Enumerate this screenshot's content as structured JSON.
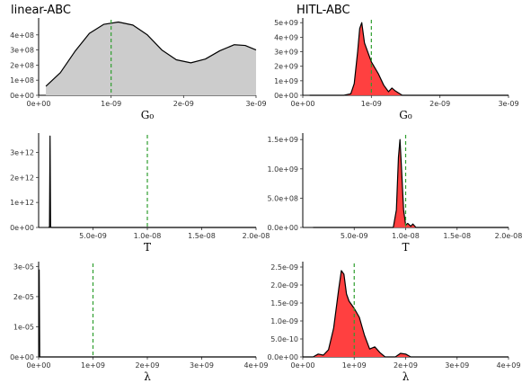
{
  "column_titles": [
    "linear-ABC",
    "HITL-ABC"
  ],
  "colors": {
    "linear_fill": "#cccccc",
    "hitl_fill": "#ff4040",
    "marker": "#2e9e2e",
    "curve": "#000000"
  },
  "chart_data": [
    {
      "type": "area",
      "column": "linear-ABC",
      "xlabel": "G₀",
      "xlim": [
        0,
        3e-09
      ],
      "ylim": [
        0,
        500000000.0
      ],
      "xticks": [
        0,
        1e-09,
        2e-09,
        3e-09
      ],
      "xtick_labels": [
        "0e+00",
        "1e-09",
        "2e-09",
        "3e-09"
      ],
      "yticks": [
        0,
        100000000.0,
        200000000.0,
        300000000.0,
        400000000.0
      ],
      "ytick_labels": [
        "0e+00",
        "1e+08",
        "2e+08",
        "3e+08",
        "4e+08"
      ],
      "filled": true,
      "reference_line_x": 1e-09,
      "x": [
        1e-10,
        3e-10,
        5e-10,
        7e-10,
        9e-10,
        1.1e-09,
        1.3e-09,
        1.5e-09,
        1.7e-09,
        1.9e-09,
        2.1e-09,
        2.3e-09,
        2.5e-09,
        2.7e-09,
        2.85e-09,
        3e-09
      ],
      "y": [
        60000000.0,
        150000000.0,
        290000000.0,
        410000000.0,
        470000000.0,
        485000000.0,
        465000000.0,
        400000000.0,
        300000000.0,
        235000000.0,
        215000000.0,
        240000000.0,
        295000000.0,
        335000000.0,
        330000000.0,
        300000000.0
      ]
    },
    {
      "type": "area",
      "column": "HITL-ABC",
      "xlabel": "G₀",
      "xlim": [
        0,
        3e-09
      ],
      "ylim": [
        0,
        5200000000.0
      ],
      "xticks": [
        0,
        1e-09,
        2e-09,
        3e-09
      ],
      "xtick_labels": [
        "0e+00",
        "1e-09",
        "2e-09",
        "3e-09"
      ],
      "yticks": [
        0,
        1000000000.0,
        2000000000.0,
        3000000000.0,
        4000000000.0,
        5000000000.0
      ],
      "ytick_labels": [
        "0e+00",
        "1e+09",
        "2e+09",
        "3e+09",
        "4e+09",
        "5e+09"
      ],
      "filled": true,
      "reference_line_x": 1e-09,
      "x": [
        1e-10,
        6e-10,
        7e-10,
        7.5e-10,
        8e-10,
        8.3e-10,
        8.6e-10,
        9e-10,
        1e-09,
        1.1e-09,
        1.18e-09,
        1.25e-09,
        1.3e-09,
        1.35e-09,
        1.45e-09,
        3e-09
      ],
      "y": [
        0,
        0,
        100000000.0,
        800000000.0,
        3000000000.0,
        4600000000.0,
        5000000000.0,
        3600000000.0,
        2300000000.0,
        1500000000.0,
        700000000.0,
        250000000.0,
        500000000.0,
        300000000.0,
        0,
        0
      ]
    },
    {
      "type": "line",
      "column": "linear-ABC",
      "xlabel": "T",
      "xlim": [
        0,
        2e-08
      ],
      "ylim": [
        0,
        3700000000000.0
      ],
      "xticks": [
        5e-09,
        1e-08,
        1.5e-08,
        2e-08
      ],
      "xtick_labels": [
        "5.0e-09",
        "1.0e-08",
        "1.5e-08",
        "2.0e-08"
      ],
      "yticks": [
        0,
        1000000000000.0,
        2000000000000.0,
        3000000000000.0
      ],
      "ytick_labels": [
        "0e+00",
        "1e+12",
        "2e+12",
        "3e+12"
      ],
      "filled": false,
      "reference_line_x": 1e-08,
      "x": [
        9e-10,
        1e-09,
        1.05e-09,
        1.1e-09,
        1.2e-09,
        2e-08
      ],
      "y": [
        0,
        20000000000.0,
        3650000000000.0,
        20000000000.0,
        0,
        0
      ]
    },
    {
      "type": "area",
      "column": "HITL-ABC",
      "xlabel": "T",
      "xlim": [
        0,
        2e-08
      ],
      "ylim": [
        0,
        1580000000.0
      ],
      "xticks": [
        5e-09,
        1e-08,
        1.5e-08,
        2e-08
      ],
      "xtick_labels": [
        "5.0e-09",
        "1.0e-08",
        "1.5e-08",
        "2.0e-08"
      ],
      "yticks": [
        0,
        500000000.0,
        1000000000.0,
        1500000000.0
      ],
      "ytick_labels": [
        "0.0e+00",
        "5.0e+08",
        "1.0e+09",
        "1.5e+09"
      ],
      "filled": true,
      "reference_line_x": 1e-08,
      "x": [
        1e-09,
        8.8e-09,
        9.1e-09,
        9.3e-09,
        9.45e-09,
        9.6e-09,
        9.8e-09,
        1e-08,
        1.02e-08,
        1.05e-08,
        1.07e-08,
        1.1e-08,
        2e-08
      ],
      "y": [
        0,
        0,
        300000000.0,
        1200000000.0,
        1500000000.0,
        1000000000.0,
        300000000.0,
        40000000.0,
        70000000.0,
        20000000.0,
        60000000.0,
        0,
        0
      ]
    },
    {
      "type": "line",
      "column": "linear-ABC",
      "xlabel": "λ",
      "xlim": [
        0,
        4000000000.0
      ],
      "ylim": [
        0,
        3.1e-05
      ],
      "xticks": [
        0,
        1000000000.0,
        2000000000.0,
        3000000000.0,
        4000000000.0
      ],
      "xtick_labels": [
        "0e+00",
        "1e+09",
        "2e+09",
        "3e+09",
        "4e+09"
      ],
      "yticks": [
        0,
        1e-05,
        2e-05,
        3e-05
      ],
      "ytick_labels": [
        "0e+00",
        "1e-05",
        "2e-05",
        "3e-05"
      ],
      "filled": false,
      "reference_line_x": 1000000000.0,
      "x": [
        10000000.0,
        20000000.0,
        40000000.0,
        4000000000.0
      ],
      "y": [
        2.9e-05,
        0,
        0,
        0
      ]
    },
    {
      "type": "area",
      "column": "HITL-ABC",
      "xlabel": "λ",
      "xlim": [
        0,
        4000000000.0
      ],
      "ylim": [
        0,
        2.6e-09
      ],
      "xticks": [
        0,
        1000000000.0,
        2000000000.0,
        3000000000.0,
        4000000000.0
      ],
      "xtick_labels": [
        "0e+00",
        "1e+09",
        "2e+09",
        "3e+09",
        "4e+09"
      ],
      "yticks": [
        0,
        5e-10,
        1e-09,
        1.5e-09,
        2e-09,
        2.5e-09
      ],
      "ytick_labels": [
        "0.0e+00",
        "5.0e-10",
        "1.0e-09",
        "1.5e-09",
        "2.0e-09",
        "2.5e-09"
      ],
      "filled": true,
      "reference_line_x": 1000000000.0,
      "x": [
        0,
        200000000.0,
        300000000.0,
        400000000.0,
        500000000.0,
        600000000.0,
        700000000.0,
        750000000.0,
        800000000.0,
        850000000.0,
        900000000.0,
        1000000000.0,
        1100000000.0,
        1200000000.0,
        1300000000.0,
        1400000000.0,
        1500000000.0,
        1600000000.0,
        1800000000.0,
        1900000000.0,
        2000000000.0,
        2100000000.0,
        4000000000.0
      ],
      "y": [
        0,
        0,
        8e-11,
        5e-11,
        2e-10,
        8e-10,
        1.9e-09,
        2.4e-09,
        2.3e-09,
        1.75e-09,
        1.55e-09,
        1.35e-09,
        1.1e-09,
        6e-10,
        2.2e-10,
        2.8e-10,
        1.2e-10,
        0,
        0,
        1e-10,
        8e-11,
        0,
        0
      ]
    }
  ]
}
